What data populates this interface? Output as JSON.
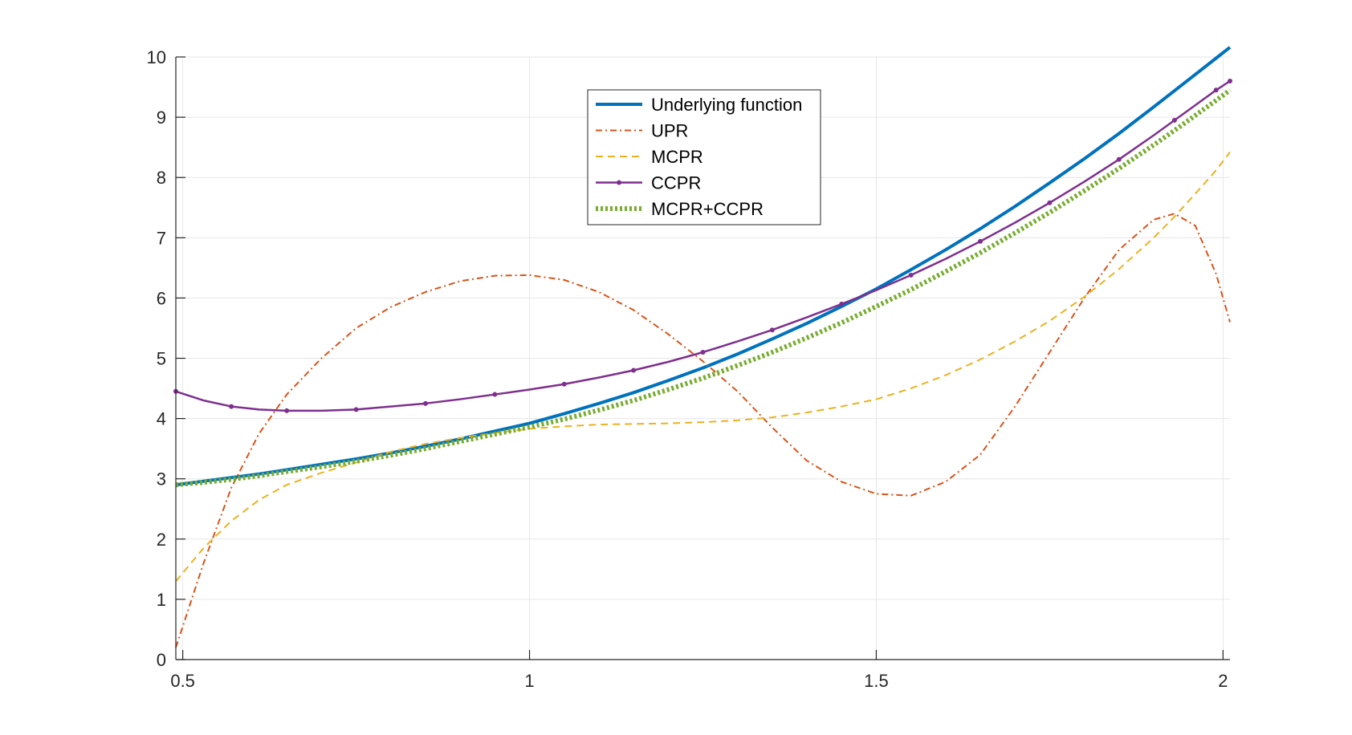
{
  "chart_data": {
    "type": "line",
    "title": "",
    "xlabel": "",
    "ylabel": "",
    "xlim": [
      0.49,
      2.01
    ],
    "ylim": [
      0,
      10
    ],
    "grid": true,
    "legend_placement": "top-center",
    "xticks": [
      0.5,
      1,
      1.5,
      2
    ],
    "xtick_labels": [
      "0.5",
      "1",
      "1.5",
      "2"
    ],
    "yticks": [
      0,
      1,
      2,
      3,
      4,
      5,
      6,
      7,
      8,
      9,
      10
    ],
    "ytick_labels": [
      "0",
      "1",
      "2",
      "3",
      "4",
      "5",
      "6",
      "7",
      "8",
      "9",
      "10"
    ],
    "x": [
      0.49,
      0.53,
      0.57,
      0.61,
      0.65,
      0.7,
      0.75,
      0.8,
      0.85,
      0.9,
      0.95,
      1.0,
      1.05,
      1.1,
      1.15,
      1.2,
      1.25,
      1.3,
      1.35,
      1.4,
      1.45,
      1.5,
      1.55,
      1.6,
      1.65,
      1.7,
      1.75,
      1.8,
      1.85,
      1.9,
      1.93,
      1.96,
      1.99,
      2.01
    ],
    "series": [
      {
        "name": "Underlying function",
        "color": "#0072BD",
        "style": "solid-thick",
        "values": [
          2.9,
          2.96,
          3.02,
          3.08,
          3.15,
          3.24,
          3.33,
          3.43,
          3.54,
          3.66,
          3.79,
          3.92,
          4.08,
          4.25,
          4.43,
          4.63,
          4.84,
          5.07,
          5.32,
          5.58,
          5.86,
          6.15,
          6.47,
          6.8,
          7.15,
          7.52,
          7.91,
          8.31,
          8.73,
          9.17,
          9.44,
          9.71,
          9.98,
          10.16
        ]
      },
      {
        "name": "UPR",
        "color": "#D95319",
        "style": "dash-dot",
        "values": [
          0.2,
          1.6,
          2.85,
          3.75,
          4.4,
          5.0,
          5.5,
          5.85,
          6.1,
          6.28,
          6.37,
          6.38,
          6.3,
          6.1,
          5.8,
          5.4,
          4.95,
          4.45,
          3.85,
          3.3,
          2.95,
          2.75,
          2.72,
          2.95,
          3.4,
          4.2,
          5.1,
          6.0,
          6.8,
          7.3,
          7.4,
          7.2,
          6.4,
          5.6
        ]
      },
      {
        "name": "MCPR",
        "color": "#EDB120",
        "style": "dashed",
        "values": [
          1.3,
          1.85,
          2.3,
          2.65,
          2.9,
          3.1,
          3.27,
          3.45,
          3.58,
          3.68,
          3.76,
          3.83,
          3.87,
          3.9,
          3.91,
          3.92,
          3.94,
          3.97,
          4.02,
          4.1,
          4.2,
          4.32,
          4.5,
          4.72,
          4.98,
          5.28,
          5.62,
          6.02,
          6.48,
          7.0,
          7.35,
          7.73,
          8.12,
          8.42
        ]
      },
      {
        "name": "CCPR",
        "color": "#7E2F8E",
        "style": "solid-markers",
        "values": [
          4.45,
          4.3,
          4.2,
          4.15,
          4.13,
          4.13,
          4.15,
          4.2,
          4.25,
          4.32,
          4.4,
          4.48,
          4.57,
          4.68,
          4.8,
          4.94,
          5.1,
          5.28,
          5.47,
          5.68,
          5.9,
          6.13,
          6.38,
          6.65,
          6.94,
          7.25,
          7.58,
          7.93,
          8.3,
          8.7,
          8.95,
          9.2,
          9.45,
          9.6
        ]
      },
      {
        "name": "MCPR+CCPR",
        "color": "#77AC30",
        "style": "dotted-thick",
        "values": [
          2.9,
          2.94,
          2.99,
          3.05,
          3.12,
          3.2,
          3.29,
          3.39,
          3.5,
          3.62,
          3.74,
          3.86,
          3.99,
          4.14,
          4.3,
          4.48,
          4.67,
          4.88,
          5.1,
          5.34,
          5.59,
          5.86,
          6.14,
          6.44,
          6.75,
          7.08,
          7.42,
          7.78,
          8.15,
          8.54,
          8.78,
          9.03,
          9.28,
          9.45
        ]
      }
    ]
  }
}
